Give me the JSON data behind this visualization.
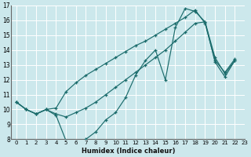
{
  "xlabel": "Humidex (Indice chaleur)",
  "bg_color": "#cce8ec",
  "grid_color": "#b0d4d8",
  "line_color": "#1a6b6b",
  "xlim": [
    -0.5,
    23
  ],
  "ylim": [
    8,
    17
  ],
  "xticks": [
    0,
    1,
    2,
    3,
    4,
    5,
    6,
    7,
    8,
    9,
    10,
    11,
    12,
    13,
    14,
    15,
    16,
    17,
    18,
    19,
    20,
    21,
    22,
    23
  ],
  "yticks": [
    8,
    9,
    10,
    11,
    12,
    13,
    14,
    15,
    16,
    17
  ],
  "series": [
    {
      "x": [
        0,
        1,
        2,
        3,
        4,
        5,
        6,
        7,
        8,
        9,
        10,
        11,
        12,
        13,
        14,
        15,
        16,
        17,
        18,
        19,
        20,
        21,
        22
      ],
      "y": [
        10.5,
        10.0,
        9.7,
        10.0,
        9.6,
        7.9,
        7.8,
        8.0,
        8.5,
        9.3,
        9.8,
        10.8,
        12.3,
        13.3,
        14.0,
        12.0,
        15.5,
        16.8,
        16.6,
        15.9,
        13.5,
        12.4,
        13.3
      ]
    },
    {
      "x": [
        0,
        1,
        2,
        3,
        4,
        5,
        6,
        7,
        8,
        9,
        10,
        11,
        12,
        13,
        14,
        15,
        16,
        17,
        18,
        19,
        20,
        21,
        22
      ],
      "y": [
        10.5,
        10.0,
        9.7,
        10.0,
        9.7,
        9.5,
        9.8,
        10.1,
        10.5,
        11.0,
        11.5,
        12.0,
        12.5,
        13.0,
        13.5,
        14.0,
        14.6,
        15.2,
        15.8,
        15.9,
        13.2,
        12.2,
        13.3
      ]
    },
    {
      "x": [
        0,
        1,
        2,
        3,
        4,
        5,
        6,
        7,
        8,
        9,
        10,
        11,
        12,
        13,
        14,
        15,
        16,
        17,
        18,
        19,
        20,
        21,
        22
      ],
      "y": [
        10.5,
        10.0,
        9.7,
        10.0,
        10.1,
        11.2,
        11.8,
        12.3,
        12.7,
        13.1,
        13.5,
        13.9,
        14.3,
        14.6,
        15.0,
        15.4,
        15.8,
        16.2,
        16.7,
        15.8,
        13.3,
        12.5,
        13.4
      ]
    }
  ]
}
